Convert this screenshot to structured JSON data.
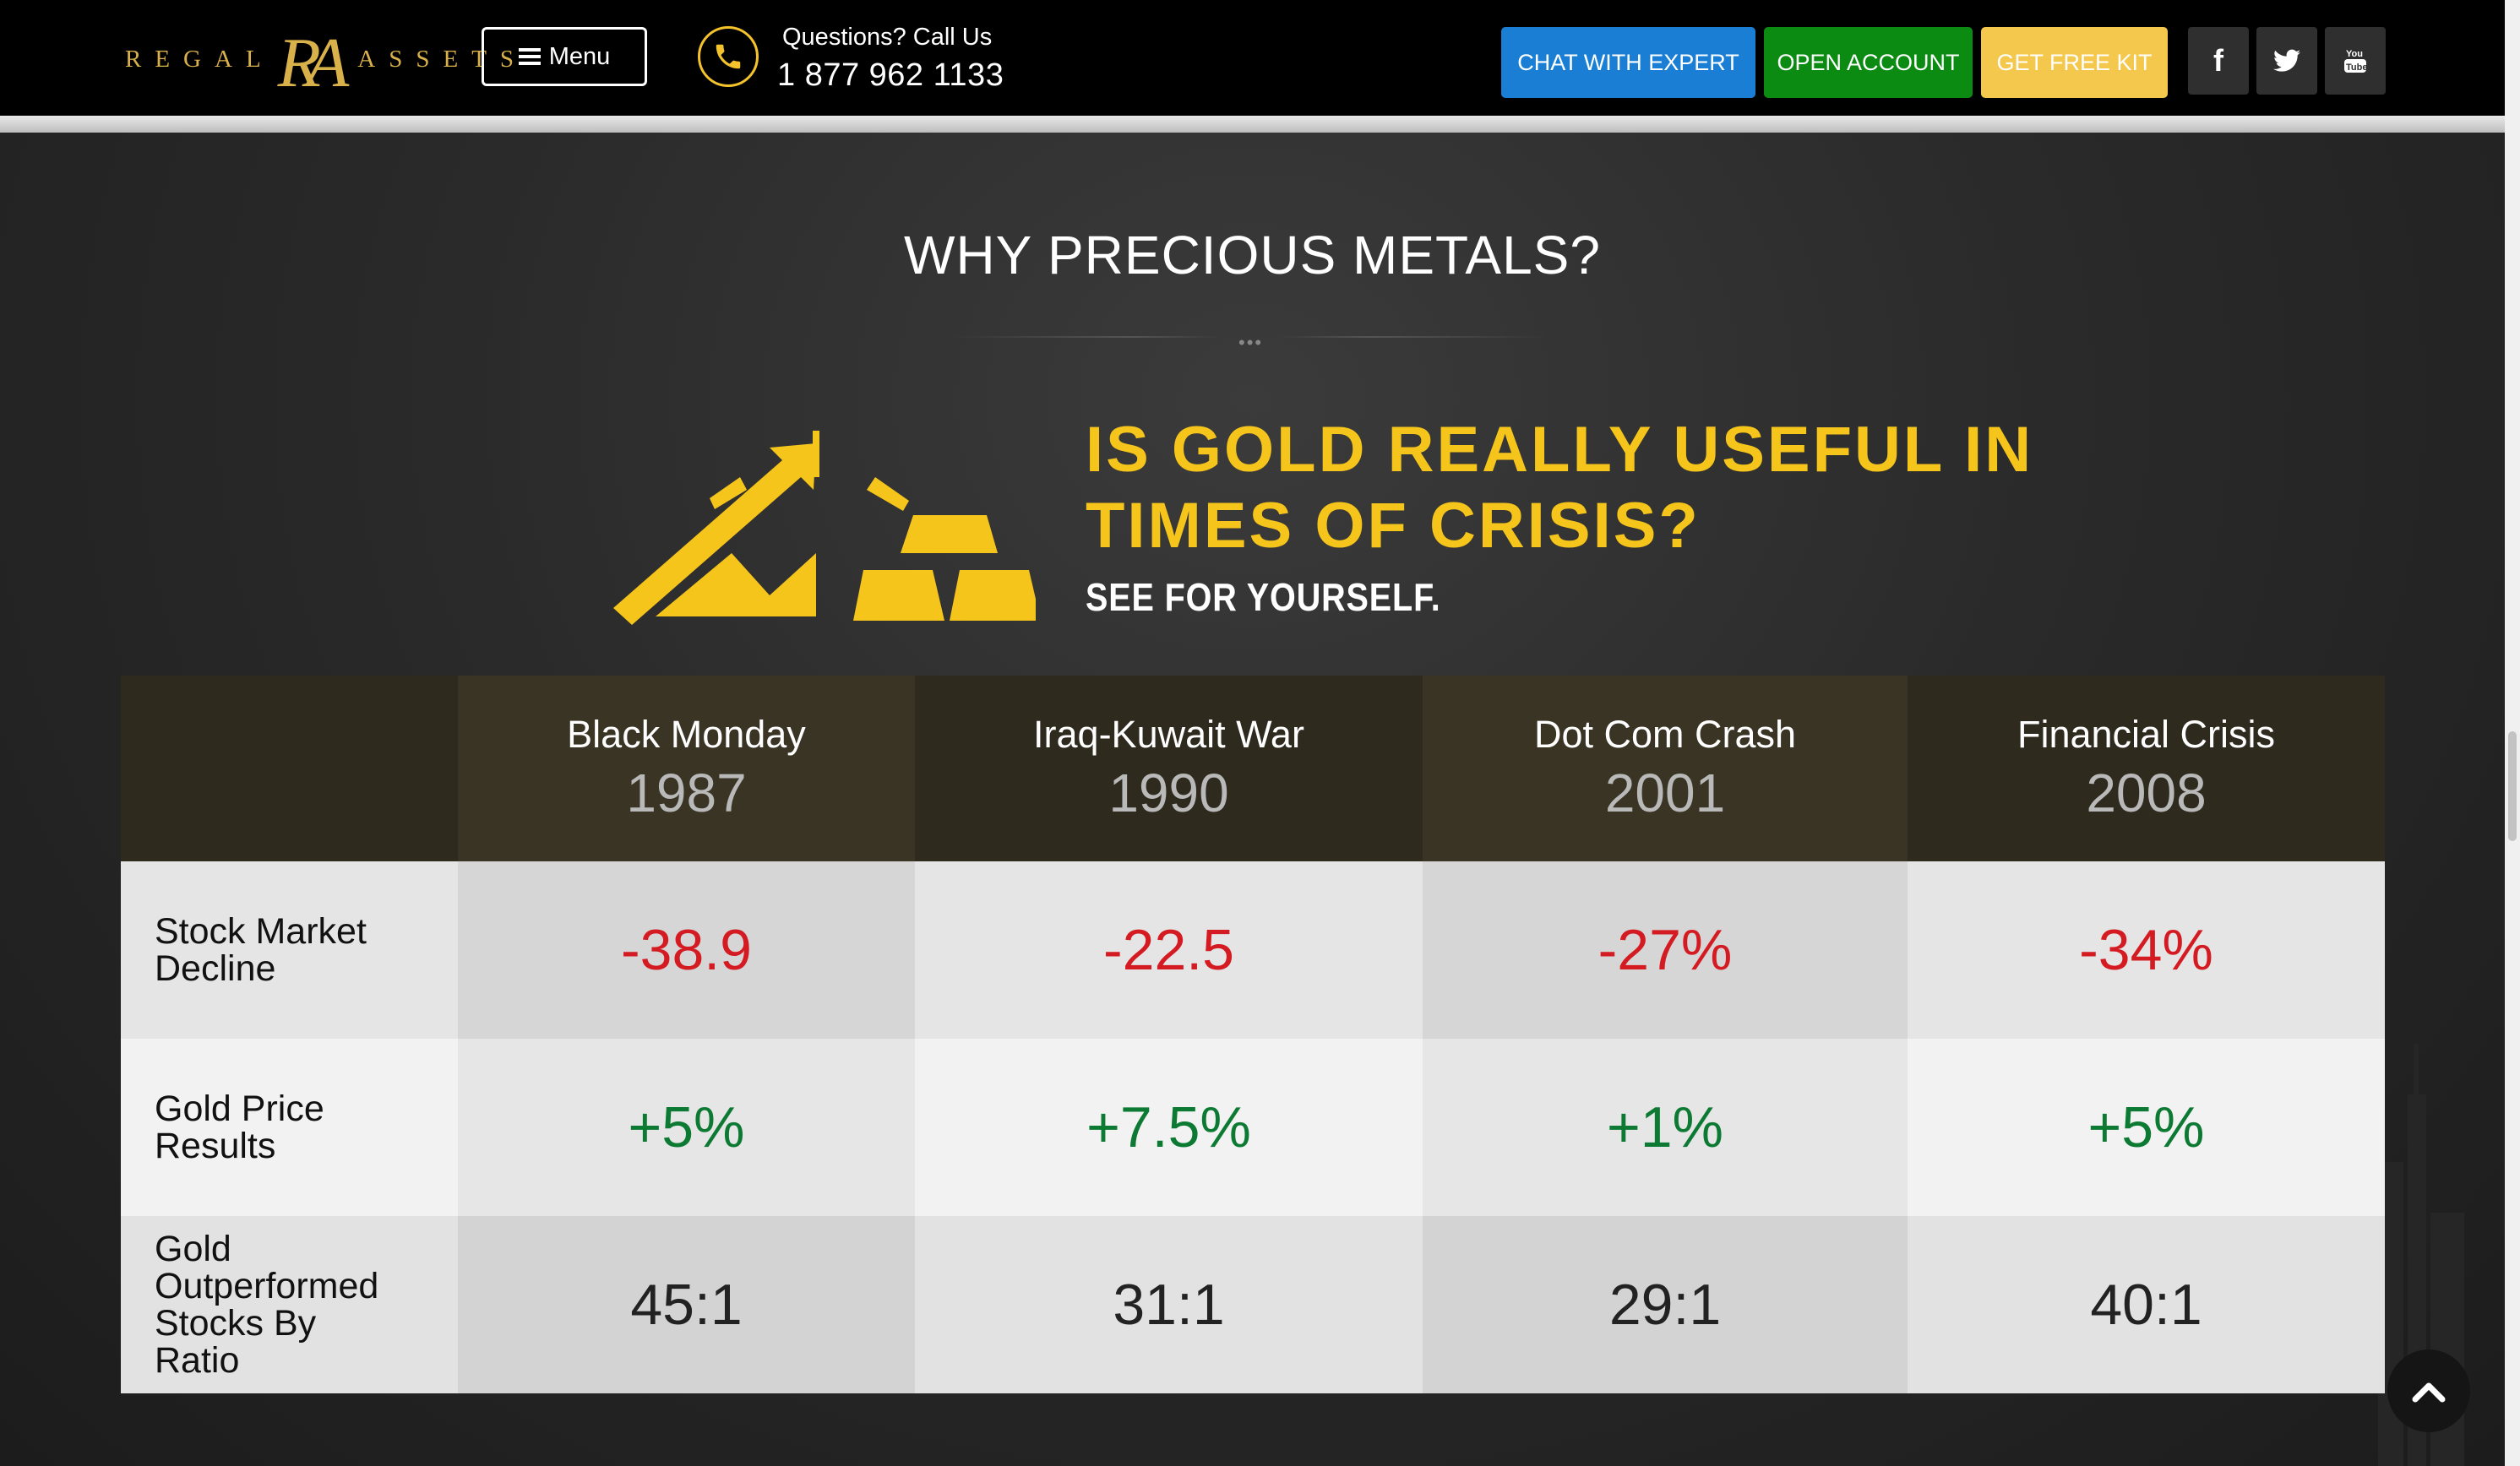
{
  "header": {
    "logo": {
      "word_left": "REGAL",
      "monogram": "RA",
      "word_right": "ASSETS"
    },
    "menu_label": "Menu",
    "phone_prompt": "Questions? Call Us",
    "phone_number": "1 877 962 1133",
    "buttons": {
      "chat": "CHAT WITH EXPERT",
      "open": "OPEN ACCOUNT",
      "kit": "GET FREE KIT"
    },
    "social": [
      "facebook-icon",
      "twitter-icon",
      "youtube-icon"
    ],
    "colors": {
      "chat": "#1a7fd4",
      "open": "#0b8b12",
      "kit": "#f4c84c",
      "gold": "#f6c51b"
    }
  },
  "section": {
    "title": "WHY PRECIOUS METALS?",
    "headline_line1": "IS GOLD REALLY USEFUL IN",
    "headline_line2": "TIMES OF CRISIS?",
    "subheadline": "SEE FOR YOURSELF."
  },
  "table": {
    "columns": [
      {
        "event": "Black Monday",
        "year": "1987"
      },
      {
        "event": "Iraq-Kuwait War",
        "year": "1990"
      },
      {
        "event": "Dot Com Crash",
        "year": "2001"
      },
      {
        "event": "Financial Crisis",
        "year": "2008"
      }
    ],
    "rows": [
      {
        "label": "Stock Market Decline",
        "values": [
          "-38.9",
          "-22.5",
          "-27%",
          "-34%"
        ]
      },
      {
        "label": "Gold Price Results",
        "values": [
          "+5%",
          "+7.5%",
          "+1%",
          "+5%"
        ]
      },
      {
        "label": "Gold Outperformed Stocks By Ratio",
        "values": [
          "45:1",
          "31:1",
          "29:1",
          "40:1"
        ]
      }
    ]
  }
}
